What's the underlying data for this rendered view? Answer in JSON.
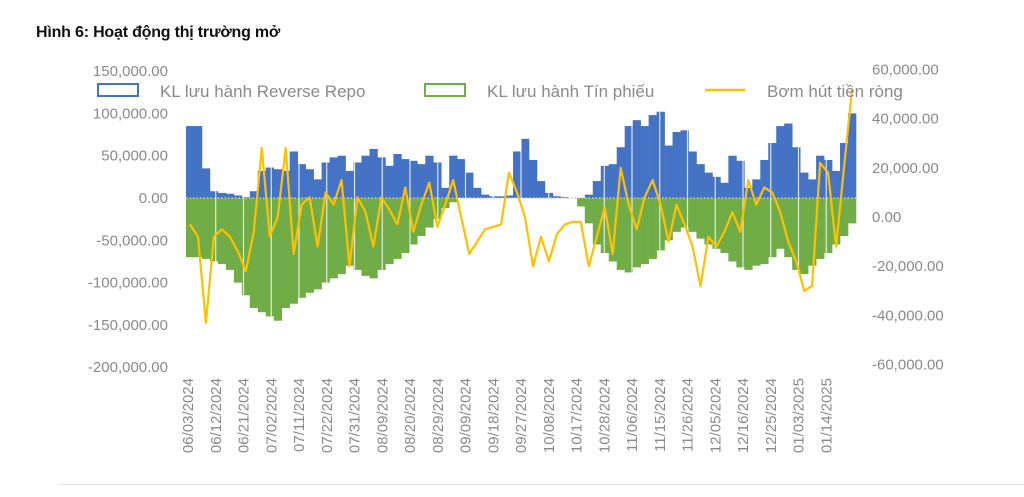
{
  "figure_title": "Hình 6: Hoạt động thị trường mở",
  "chart_data": {
    "type": "bar+line",
    "title": "Hình 6: Hoạt động thị trường mở",
    "legend_position": "top",
    "left_axis": {
      "min": -200000,
      "max": 150000,
      "step": 50000,
      "tick_labels": [
        "150,000.00",
        "100,000.00",
        "50,000.00",
        "0.00",
        "-50,000.00",
        "-100,000.00",
        "-150,000.00",
        "-200,000.00"
      ]
    },
    "right_axis": {
      "min": -60000,
      "max": 60000,
      "step": 20000,
      "tick_labels": [
        "60,000.00",
        "40,000.00",
        "20,000.00",
        "0.00",
        "-20,000.00",
        "-40,000.00",
        "-60,000.00"
      ]
    },
    "x_tick_labels": [
      "06/03/2024",
      "06/12/2024",
      "06/21/2024",
      "07/02/2024",
      "07/11/2024",
      "07/22/2024",
      "07/31/2024",
      "08/09/2024",
      "08/20/2024",
      "08/29/2024",
      "09/09/2024",
      "09/18/2024",
      "09/27/2024",
      "10/08/2024",
      "10/17/2024",
      "10/28/2024",
      "11/06/2024",
      "11/15/2024",
      "11/26/2024",
      "12/05/2024",
      "12/16/2024",
      "12/25/2024",
      "01/03/2025",
      "01/14/2025"
    ],
    "series": [
      {
        "name": "KL lưu hành Reverse Repo",
        "type": "bar",
        "axis": "left",
        "color": "#4472C4",
        "values": [
          85000,
          85000,
          35000,
          8000,
          6000,
          5000,
          3000,
          1000,
          8000,
          32000,
          36000,
          34000,
          32000,
          55000,
          40000,
          34000,
          22000,
          42000,
          48000,
          50000,
          32000,
          42000,
          50000,
          58000,
          48000,
          38000,
          52000,
          46000,
          44000,
          40000,
          50000,
          42000,
          12000,
          50000,
          46000,
          30000,
          12000,
          4000,
          2000,
          2000,
          3000,
          55000,
          70000,
          45000,
          20000,
          6000,
          2000,
          1000,
          0,
          0,
          4000,
          20000,
          38000,
          40000,
          60000,
          85000,
          92000,
          85000,
          98000,
          102000,
          62000,
          78000,
          80000,
          55000,
          40000,
          30000,
          25000,
          18000,
          50000,
          44000,
          12000,
          22000,
          45000,
          65000,
          85000,
          88000,
          60000,
          30000,
          22000,
          50000,
          45000,
          32000,
          65000,
          100000
        ]
      },
      {
        "name": "KL lưu hành Tín phiếu",
        "type": "bar",
        "axis": "left",
        "color": "#70AD47",
        "values": [
          -70000,
          -70000,
          -72000,
          -75000,
          -78000,
          -85000,
          -100000,
          -115000,
          -130000,
          -135000,
          -140000,
          -145000,
          -130000,
          -125000,
          -118000,
          -112000,
          -108000,
          -100000,
          -95000,
          -90000,
          -80000,
          -85000,
          -92000,
          -95000,
          -85000,
          -78000,
          -72000,
          -65000,
          -55000,
          -45000,
          -35000,
          -25000,
          -12000,
          -5000,
          0,
          0,
          0,
          0,
          0,
          0,
          0,
          0,
          0,
          0,
          0,
          0,
          0,
          0,
          0,
          -10000,
          -30000,
          -55000,
          -65000,
          -75000,
          -85000,
          -88000,
          -82000,
          -78000,
          -72000,
          -62000,
          -50000,
          -40000,
          -35000,
          -40000,
          -48000,
          -55000,
          -60000,
          -65000,
          -75000,
          -82000,
          -85000,
          -80000,
          -78000,
          -70000,
          -60000,
          -70000,
          -85000,
          -90000,
          -80000,
          -72000,
          -65000,
          -55000,
          -45000,
          -30000
        ]
      },
      {
        "name": "Bơm hút tiền ròng",
        "type": "line",
        "axis": "right",
        "color": "#FFC000",
        "values": [
          -3000,
          -8000,
          -43000,
          -8000,
          -5000,
          -8000,
          -14000,
          -22000,
          -6000,
          28000,
          -8000,
          0,
          28000,
          -15000,
          5000,
          8000,
          -12000,
          10000,
          5000,
          15000,
          -20000,
          8000,
          2000,
          -12000,
          8000,
          3000,
          -3000,
          12000,
          -6000,
          5000,
          14000,
          -4000,
          5000,
          15000,
          0,
          -15000,
          -10000,
          -5000,
          -4000,
          -3000,
          18000,
          10000,
          0,
          -20000,
          -8000,
          -18000,
          -7000,
          -3000,
          -2000,
          -2000,
          -20000,
          -8000,
          4000,
          -15000,
          20000,
          5000,
          -5000,
          8000,
          15000,
          5000,
          -10000,
          5000,
          -3000,
          -12000,
          -28000,
          -8000,
          -12000,
          -6000,
          2000,
          -6000,
          15000,
          5000,
          12000,
          10000,
          2000,
          -10000,
          -18000,
          -30000,
          -28000,
          22000,
          18000,
          -12000,
          20000,
          52000
        ]
      }
    ]
  }
}
